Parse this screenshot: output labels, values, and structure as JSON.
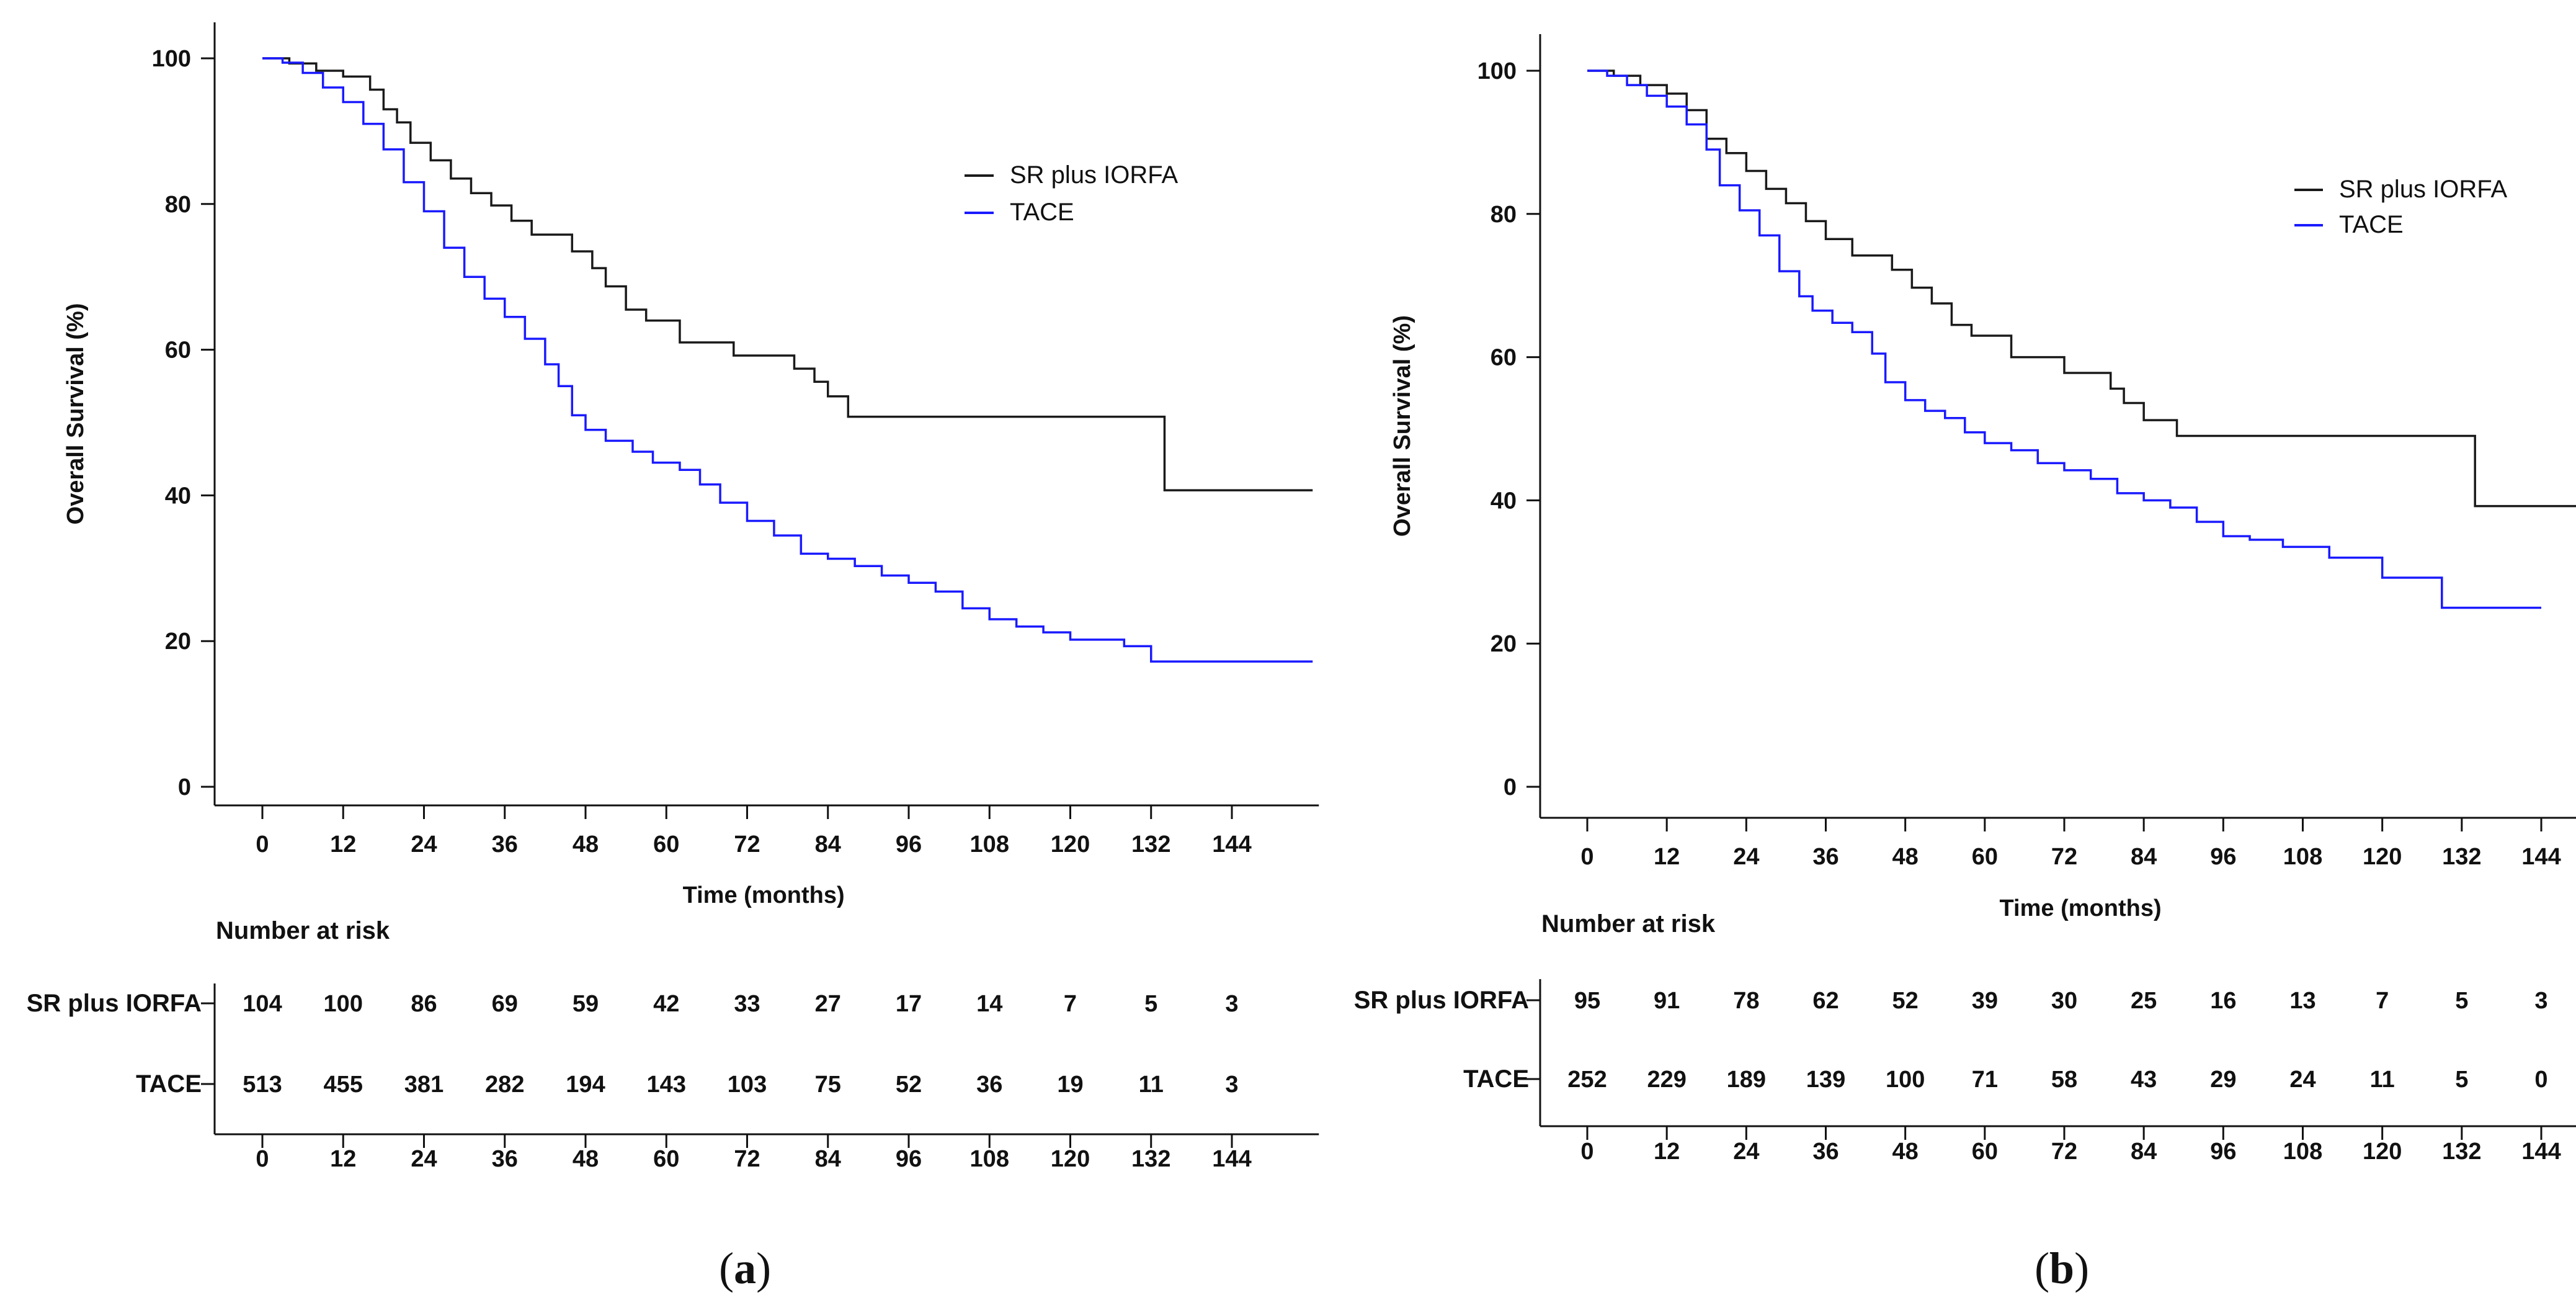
{
  "chart_data": [
    {
      "panel_label": "a",
      "caption": [
        "(",
        "a",
        ")"
      ],
      "type": "line",
      "step": true,
      "xlabel": "Time (months)",
      "ylabel": "Overall Survival (%)",
      "xlim": [
        -10,
        156
      ],
      "ylim": [
        0,
        100
      ],
      "x_ticks": [
        0,
        12,
        24,
        36,
        48,
        60,
        72,
        84,
        96,
        108,
        120,
        132,
        144
      ],
      "y_ticks": [
        0,
        20,
        40,
        60,
        80,
        100
      ],
      "legend_position": "top-right",
      "series": [
        {
          "name": "SR plus IORFA",
          "color": "#1a1a1a",
          "points": [
            [
              0,
              100
            ],
            [
              4,
              99.3
            ],
            [
              8,
              98.3
            ],
            [
              12,
              97.5
            ],
            [
              16,
              95.7
            ],
            [
              18,
              93
            ],
            [
              20,
              91.2
            ],
            [
              22,
              88.4
            ],
            [
              25,
              86
            ],
            [
              28,
              83.5
            ],
            [
              31,
              81.5
            ],
            [
              34,
              79.8
            ],
            [
              37,
              77.7
            ],
            [
              40,
              75.8
            ],
            [
              44,
              75.8
            ],
            [
              46,
              73.5
            ],
            [
              49,
              71.2
            ],
            [
              51,
              68.7
            ],
            [
              54,
              65.5
            ],
            [
              57,
              64
            ],
            [
              62,
              61
            ],
            [
              70,
              59.2
            ],
            [
              79,
              57.4
            ],
            [
              82,
              55.6
            ],
            [
              84,
              53.6
            ],
            [
              87,
              50.8
            ],
            [
              134,
              50.8
            ],
            [
              134,
              40.7
            ],
            [
              156,
              40.7
            ]
          ]
        },
        {
          "name": "TACE",
          "color": "#1a1aff",
          "points": [
            [
              0,
              100
            ],
            [
              3,
              99.4
            ],
            [
              6,
              98
            ],
            [
              9,
              96
            ],
            [
              12,
              94
            ],
            [
              15,
              91
            ],
            [
              18,
              87.5
            ],
            [
              21,
              83
            ],
            [
              24,
              79
            ],
            [
              27,
              74
            ],
            [
              30,
              70
            ],
            [
              33,
              67
            ],
            [
              36,
              64.5
            ],
            [
              39,
              61.5
            ],
            [
              42,
              58
            ],
            [
              44,
              55
            ],
            [
              46,
              51
            ],
            [
              48,
              49
            ],
            [
              51,
              47.5
            ],
            [
              55,
              46
            ],
            [
              58,
              44.5
            ],
            [
              62,
              43.5
            ],
            [
              65,
              41.5
            ],
            [
              68,
              39
            ],
            [
              72,
              36.5
            ],
            [
              76,
              34.5
            ],
            [
              80,
              32
            ],
            [
              84,
              31.3
            ],
            [
              88,
              30.3
            ],
            [
              92,
              29
            ],
            [
              96,
              28
            ],
            [
              100,
              26.8
            ],
            [
              104,
              24.5
            ],
            [
              108,
              23
            ],
            [
              112,
              22
            ],
            [
              116,
              21.2
            ],
            [
              120,
              20.2
            ],
            [
              128,
              19.3
            ],
            [
              132,
              17.2
            ],
            [
              156,
              17.2
            ]
          ]
        }
      ],
      "risk_table": {
        "title": "Number at risk",
        "groups": [
          "SR plus IORFA",
          "TACE"
        ],
        "times": [
          "0",
          "12",
          "24",
          "36",
          "48",
          "60",
          "72",
          "84",
          "96",
          "108",
          "120",
          "132",
          "144"
        ],
        "rows": [
          [
            "104",
            "100",
            "86",
            "69",
            "59",
            "42",
            "33",
            "27",
            "17",
            "14",
            "7",
            "5",
            "3"
          ],
          [
            "513",
            "455",
            "381",
            "282",
            "194",
            "143",
            "103",
            "75",
            "52",
            "36",
            "19",
            "11",
            "3"
          ]
        ]
      }
    },
    {
      "panel_label": "b",
      "caption": [
        "(",
        "b",
        ")"
      ],
      "type": "line",
      "step": true,
      "xlabel": "Time (months)",
      "ylabel": "Overall Survival (%)",
      "xlim": [
        -10,
        156
      ],
      "ylim": [
        0,
        100
      ],
      "x_ticks": [
        0,
        12,
        24,
        36,
        48,
        60,
        72,
        84,
        96,
        108,
        120,
        132,
        144
      ],
      "y_ticks": [
        0,
        20,
        40,
        60,
        80,
        100
      ],
      "legend_position": "top-right",
      "series": [
        {
          "name": "SR plus IORFA",
          "color": "#1a1a1a",
          "points": [
            [
              0,
              100
            ],
            [
              4,
              99.3
            ],
            [
              8,
              98
            ],
            [
              12,
              96.8
            ],
            [
              15,
              94.5
            ],
            [
              18,
              90.5
            ],
            [
              21,
              88.5
            ],
            [
              24,
              86
            ],
            [
              27,
              83.5
            ],
            [
              30,
              81.5
            ],
            [
              33,
              79
            ],
            [
              36,
              76.5
            ],
            [
              40,
              74.2
            ],
            [
              46,
              72.2
            ],
            [
              49,
              69.7
            ],
            [
              52,
              67.5
            ],
            [
              55,
              64.5
            ],
            [
              58,
              63
            ],
            [
              64,
              60
            ],
            [
              72,
              57.8
            ],
            [
              79,
              55.6
            ],
            [
              81,
              53.6
            ],
            [
              84,
              51.2
            ],
            [
              89,
              49
            ],
            [
              134,
              49
            ],
            [
              134,
              39.2
            ],
            [
              156,
              39.2
            ]
          ]
        },
        {
          "name": "TACE",
          "color": "#1a1aff",
          "points": [
            [
              0,
              100
            ],
            [
              3,
              99.3
            ],
            [
              6,
              98
            ],
            [
              9,
              96.5
            ],
            [
              12,
              95
            ],
            [
              15,
              92.5
            ],
            [
              18,
              89
            ],
            [
              20,
              84
            ],
            [
              23,
              80.5
            ],
            [
              26,
              77
            ],
            [
              29,
              72
            ],
            [
              32,
              68.5
            ],
            [
              34,
              66.5
            ],
            [
              37,
              64.8
            ],
            [
              40,
              63.5
            ],
            [
              43,
              60.5
            ],
            [
              45,
              56.5
            ],
            [
              48,
              54
            ],
            [
              51,
              52.5
            ],
            [
              54,
              51.5
            ],
            [
              57,
              49.5
            ],
            [
              60,
              48
            ],
            [
              64,
              47
            ],
            [
              68,
              45.2
            ],
            [
              72,
              44.2
            ],
            [
              76,
              43
            ],
            [
              80,
              41
            ],
            [
              84,
              40
            ],
            [
              88,
              39
            ],
            [
              92,
              37
            ],
            [
              96,
              35
            ],
            [
              100,
              34.5
            ],
            [
              105,
              33.5
            ],
            [
              108,
              33.5
            ],
            [
              112,
              32
            ],
            [
              120,
              29.2
            ],
            [
              129,
              25
            ],
            [
              144,
              25
            ]
          ]
        }
      ],
      "risk_table": {
        "title": "Number at risk",
        "groups": [
          "SR plus IORFA",
          "TACE"
        ],
        "times": [
          "0",
          "12",
          "24",
          "36",
          "48",
          "60",
          "72",
          "84",
          "96",
          "108",
          "120",
          "132",
          "144"
        ],
        "rows": [
          [
            "95",
            "91",
            "78",
            "62",
            "52",
            "39",
            "30",
            "25",
            "16",
            "13",
            "7",
            "5",
            "3"
          ],
          [
            "252",
            "229",
            "189",
            "139",
            "100",
            "71",
            "58",
            "43",
            "29",
            "24",
            "11",
            "5",
            "0"
          ]
        ]
      }
    }
  ]
}
